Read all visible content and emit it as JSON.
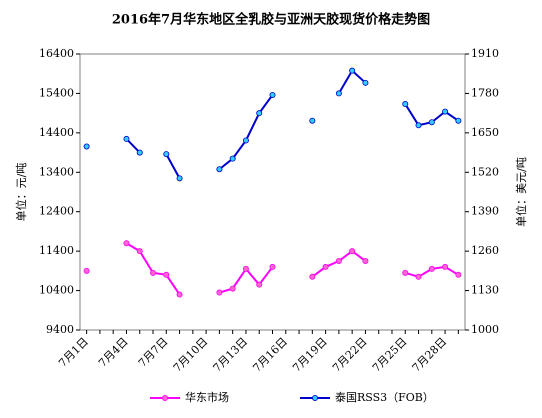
{
  "chart_data": {
    "type": "line",
    "title": "2016年7月华东地区全乳胶与亚洲天胶现货价格走势图",
    "y_label": "单位：元/吨",
    "y2_label": "单位：美元/吨",
    "categories": [
      "7月1日",
      null,
      null,
      "7月4日",
      null,
      null,
      "7月7日",
      null,
      null,
      "7月10日",
      null,
      null,
      "7月13日",
      null,
      null,
      "7月16日",
      null,
      null,
      "7月19日",
      null,
      null,
      "7月22日",
      null,
      null,
      "7月25日",
      null,
      null,
      "7月28日",
      null
    ],
    "series": [
      {
        "name": "华东市场",
        "color": "#ff00ff",
        "marker_fill": "#ff66cc",
        "values": [
          10900,
          null,
          null,
          11600,
          11400,
          10850,
          10800,
          10300,
          null,
          null,
          10350,
          10450,
          10950,
          10550,
          11000,
          null,
          null,
          10750,
          11000,
          11150,
          11400,
          11150,
          null,
          null,
          10850,
          10750,
          10950,
          11000,
          10800
        ]
      },
      {
        "name": "泰国RSS3（FOB）",
        "color": "#0000cc",
        "marker_fill": "#33ccff",
        "axis": "y2",
        "values": [
          1605,
          null,
          null,
          1630,
          1585,
          null,
          1580,
          1500,
          null,
          null,
          1530,
          1565,
          1625,
          1715,
          1775,
          null,
          null,
          1690,
          null,
          1780,
          1855,
          1815,
          null,
          null,
          1745,
          1675,
          1685,
          1720,
          1690
        ]
      }
    ],
    "ylim": [
      9400,
      16400
    ],
    "yticks": [
      9400,
      10400,
      11400,
      12400,
      13400,
      14400,
      15400,
      16400
    ],
    "y2lim": [
      1000,
      1910
    ],
    "y2ticks": [
      1000,
      1130,
      1260,
      1390,
      1520,
      1650,
      1780,
      1910
    ],
    "grid": false,
    "legend": "bottom"
  }
}
